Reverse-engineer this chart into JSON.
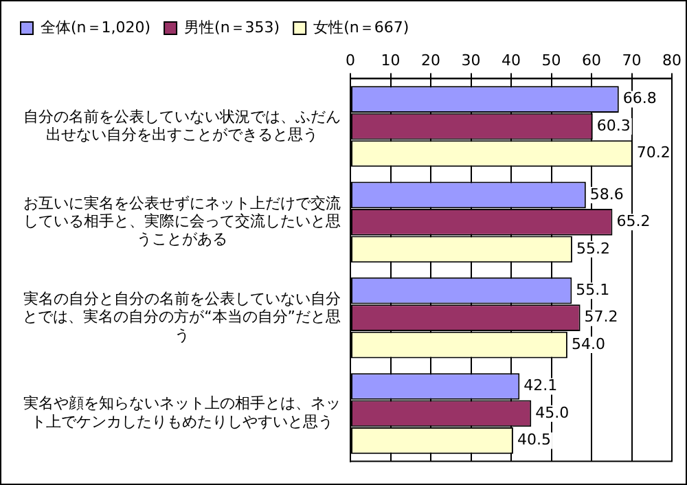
{
  "chart_data": {
    "type": "bar",
    "orientation": "horizontal",
    "categories": [
      "自分の名前を公表していない状況では、ふだん出せない自分を出すことができると思う",
      "お互いに実名を公表せずにネット上だけで交流している相手と、実際に会って交流したいと思うことがある",
      "実名の自分と自分の名前を公表していない自分とでは、実名の自分の方が“本当の自分”だと思う",
      "実名や顔を知らないネット上の相手とは、ネット上でケンカしたりもめたりしやすいと思う"
    ],
    "series": [
      {
        "name": "全体(n＝1,020)",
        "color": "#9999ff",
        "values": [
          66.8,
          58.6,
          55.1,
          42.1
        ],
        "value_labels": [
          "66.8",
          "58.6",
          "55.1",
          "42.1"
        ]
      },
      {
        "name": "男性(n＝353)",
        "color": "#993366",
        "values": [
          60.3,
          65.2,
          57.2,
          45.0
        ],
        "value_labels": [
          "60.3",
          "65.2",
          "57.2",
          "45.0"
        ]
      },
      {
        "name": "女性(n＝667)",
        "color": "#ffffcc",
        "values": [
          70.2,
          55.2,
          54.0,
          40.5
        ],
        "value_labels": [
          "70.2",
          "55.2",
          "54.0",
          "40.5"
        ]
      }
    ],
    "xlim": [
      0,
      80
    ],
    "xticks": [
      0,
      10,
      20,
      30,
      40,
      50,
      60,
      70,
      80
    ],
    "grid": "x",
    "legend": "top left"
  }
}
